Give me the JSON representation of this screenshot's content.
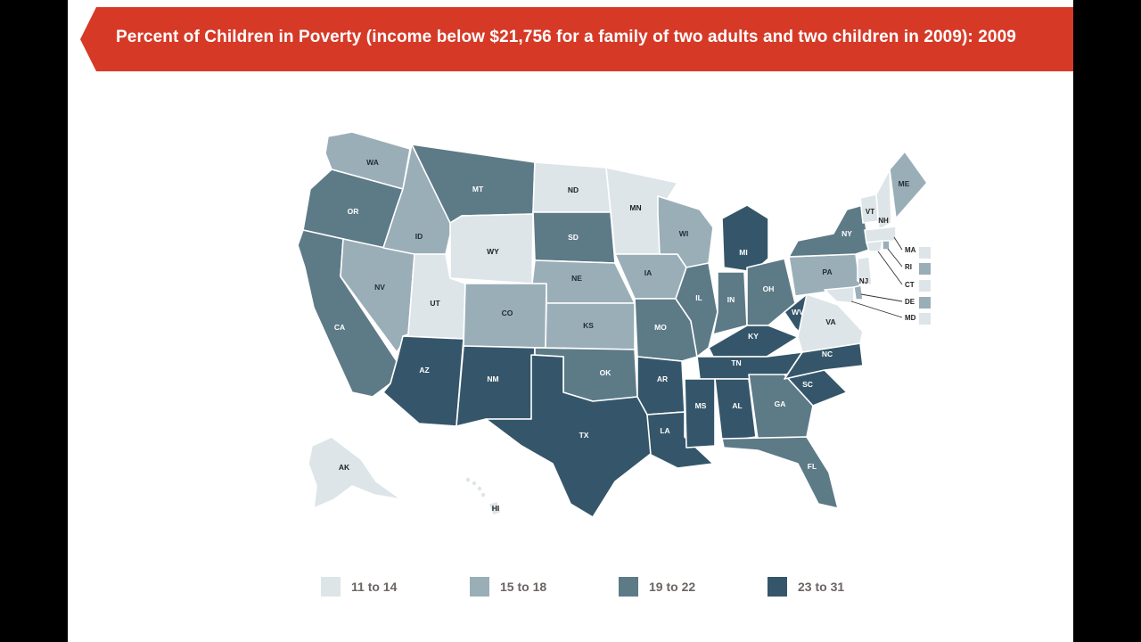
{
  "title": "Percent of Children in Poverty (income below $21,756 for a family of two adults and two children in 2009): 2009",
  "colors": {
    "banner": "#d63a27",
    "bin1": "#dde5e8",
    "bin2": "#9aaeb8",
    "bin3": "#5d7a87",
    "bin4": "#35566a"
  },
  "legend": [
    {
      "label": "11 to 14",
      "color": "#dde5e8"
    },
    {
      "label": "15 to 18",
      "color": "#9aaeb8"
    },
    {
      "label": "19 to 22",
      "color": "#5d7a87"
    },
    {
      "label": "23 to 31",
      "color": "#35566a"
    }
  ],
  "states": {
    "WA": 2,
    "OR": 3,
    "CA": 3,
    "NV": 2,
    "ID": 2,
    "MT": 3,
    "WY": 1,
    "UT": 1,
    "AZ": 4,
    "NM": 4,
    "CO": 2,
    "ND": 1,
    "SD": 3,
    "NE": 2,
    "KS": 2,
    "OK": 3,
    "TX": 4,
    "MN": 1,
    "IA": 2,
    "MO": 3,
    "AR": 4,
    "LA": 4,
    "WI": 2,
    "IL": 3,
    "MI": 4,
    "IN": 3,
    "OH": 3,
    "KY": 4,
    "TN": 4,
    "MS": 4,
    "AL": 4,
    "GA": 3,
    "FL": 3,
    "SC": 4,
    "NC": 4,
    "WV": 4,
    "VA": 1,
    "PA": 2,
    "NY": 3,
    "ME": 2,
    "VT": 1,
    "NH": 1,
    "MA": 1,
    "RI": 2,
    "CT": 1,
    "NJ": 1,
    "DE": 2,
    "MD": 1,
    "AK": 1,
    "HI": 1
  },
  "northeast_callouts": [
    "MA",
    "RI",
    "CT",
    "DE",
    "MD"
  ],
  "small_labels": [
    "VT",
    "NH",
    "NJ"
  ]
}
